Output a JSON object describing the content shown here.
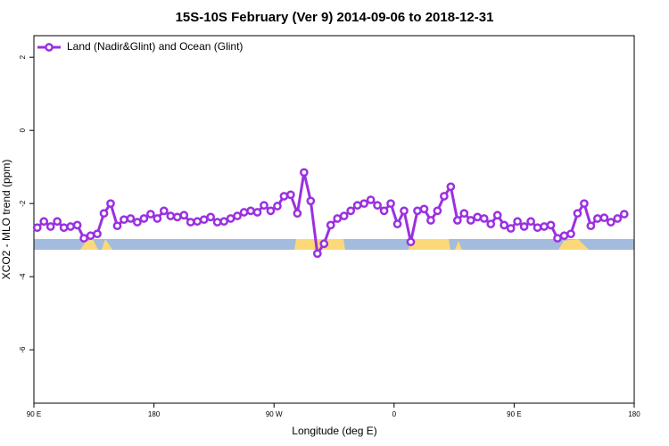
{
  "chart_data": {
    "type": "line",
    "title": "15S-10S February (Ver 9)   2014-09-06 to 2018-12-31",
    "x_label": "Longitude (deg E)",
    "y_label": "XCO2 - MLO trend (ppm)",
    "xlim": [
      90,
      540
    ],
    "ylim": [
      -7.46,
      2.59
    ],
    "xticks": [
      {
        "value": 90,
        "label": "90 E"
      },
      {
        "value": 180,
        "label": "180"
      },
      {
        "value": 270,
        "label": "90 W"
      },
      {
        "value": 360,
        "label": "0"
      },
      {
        "value": 450,
        "label": "90 E"
      },
      {
        "value": 540,
        "label": "180"
      }
    ],
    "yticks": [
      2,
      0,
      -2,
      -4,
      -6
    ],
    "x": [
      92.5,
      97.5,
      102.5,
      107.5,
      112.5,
      117.5,
      122.5,
      127.5,
      132.5,
      137.5,
      142.5,
      147.5,
      152.5,
      157.5,
      162.5,
      167.5,
      172.5,
      177.5,
      182.5,
      187.5,
      192.5,
      197.5,
      202.5,
      207.5,
      212.5,
      217.5,
      222.5,
      227.5,
      232.5,
      237.5,
      242.5,
      247.5,
      252.5,
      257.5,
      262.5,
      267.5,
      272.5,
      277.5,
      282.5,
      287.5,
      292.5,
      297.5,
      302.5,
      307.5,
      312.5,
      317.5,
      322.5,
      327.5,
      332.5,
      337.5,
      342.5,
      347.5,
      352.5,
      357.5,
      362.5,
      367.5,
      372.5,
      377.5,
      382.5,
      387.5,
      392.5,
      397.5,
      402.5,
      407.5,
      412.5,
      417.5,
      422.5,
      427.5,
      432.5,
      437.5,
      442.5,
      447.5,
      452.5,
      457.5,
      462.5,
      467.5,
      472.5,
      477.5,
      482.5,
      487.5,
      492.5,
      497.5,
      502.5,
      507.5,
      512.5,
      517.5,
      522.5,
      527.5,
      532.5
    ],
    "series": [
      {
        "name": "Land (Nadir&Glint) and Ocean (Glint)",
        "color": "#9b30e0",
        "values": [
          -2.66,
          -2.49,
          -2.63,
          -2.49,
          -2.66,
          -2.63,
          -2.59,
          -2.95,
          -2.88,
          -2.83,
          -2.27,
          -2.0,
          -2.61,
          -2.44,
          -2.41,
          -2.51,
          -2.41,
          -2.29,
          -2.41,
          -2.2,
          -2.34,
          -2.37,
          -2.32,
          -2.51,
          -2.49,
          -2.44,
          -2.37,
          -2.51,
          -2.49,
          -2.41,
          -2.34,
          -2.24,
          -2.2,
          -2.24,
          -2.05,
          -2.2,
          -2.07,
          -1.8,
          -1.76,
          -2.27,
          -1.15,
          -1.93,
          -3.37,
          -3.1,
          -2.59,
          -2.41,
          -2.34,
          -2.2,
          -2.05,
          -2.0,
          -1.9,
          -2.05,
          -2.2,
          -2.0,
          -2.56,
          -2.2,
          -3.05,
          -2.2,
          -2.15,
          -2.46,
          -2.2,
          -1.8,
          -1.54,
          -2.46,
          -2.27,
          -2.46,
          -2.37,
          -2.41,
          -2.56,
          -2.32,
          -2.59,
          -2.68,
          -2.49,
          -2.63,
          -2.49,
          -2.66,
          -2.63,
          -2.59,
          -2.95,
          -2.88,
          -2.83,
          -2.27,
          -2.0,
          -2.61,
          -2.41,
          -2.39,
          -2.51,
          -2.41,
          -2.29
        ]
      }
    ],
    "legend": "top-left"
  }
}
